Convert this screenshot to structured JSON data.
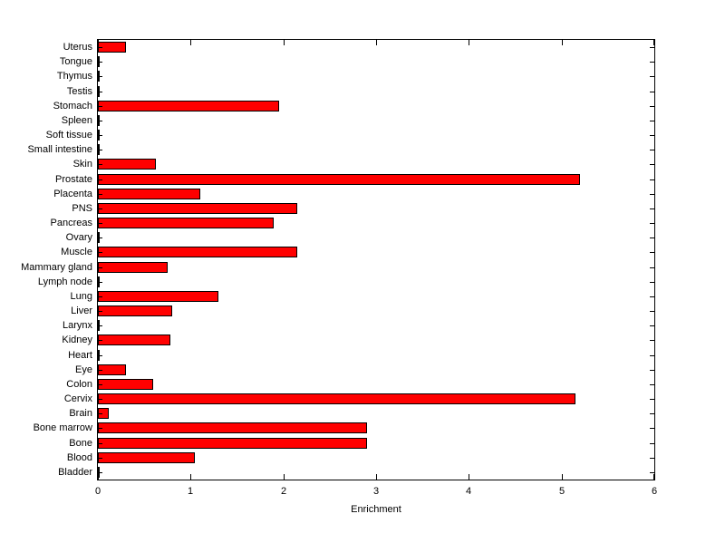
{
  "chart_data": {
    "type": "bar",
    "orientation": "horizontal",
    "title": "",
    "xlabel": "Enrichment",
    "ylabel": "",
    "xlim": [
      0,
      6
    ],
    "xticks": [
      0,
      1,
      2,
      3,
      4,
      5,
      6
    ],
    "grid": false,
    "legend": "none",
    "bar_color": "#ff0000",
    "bar_edge_color": "#000000",
    "categories_top_to_bottom": [
      "Uterus",
      "Tongue",
      "Thymus",
      "Testis",
      "Stomach",
      "Spleen",
      "Soft tissue",
      "Small intestine",
      "Skin",
      "Prostate",
      "Placenta",
      "PNS",
      "Pancreas",
      "Ovary",
      "Muscle",
      "Mammary gland",
      "Lymph node",
      "Lung",
      "Liver",
      "Larynx",
      "Kidney",
      "Heart",
      "Eye",
      "Colon",
      "Cervix",
      "Brain",
      "Bone marrow",
      "Bone",
      "Blood",
      "Bladder"
    ],
    "values": [
      0.3,
      0,
      0,
      0,
      1.95,
      0,
      0,
      0,
      0.63,
      5.2,
      1.1,
      2.15,
      1.9,
      0,
      2.15,
      0.75,
      0,
      1.3,
      0.8,
      0,
      0.78,
      0,
      0.3,
      0.6,
      5.15,
      0.12,
      2.9,
      2.9,
      1.05,
      0
    ]
  }
}
